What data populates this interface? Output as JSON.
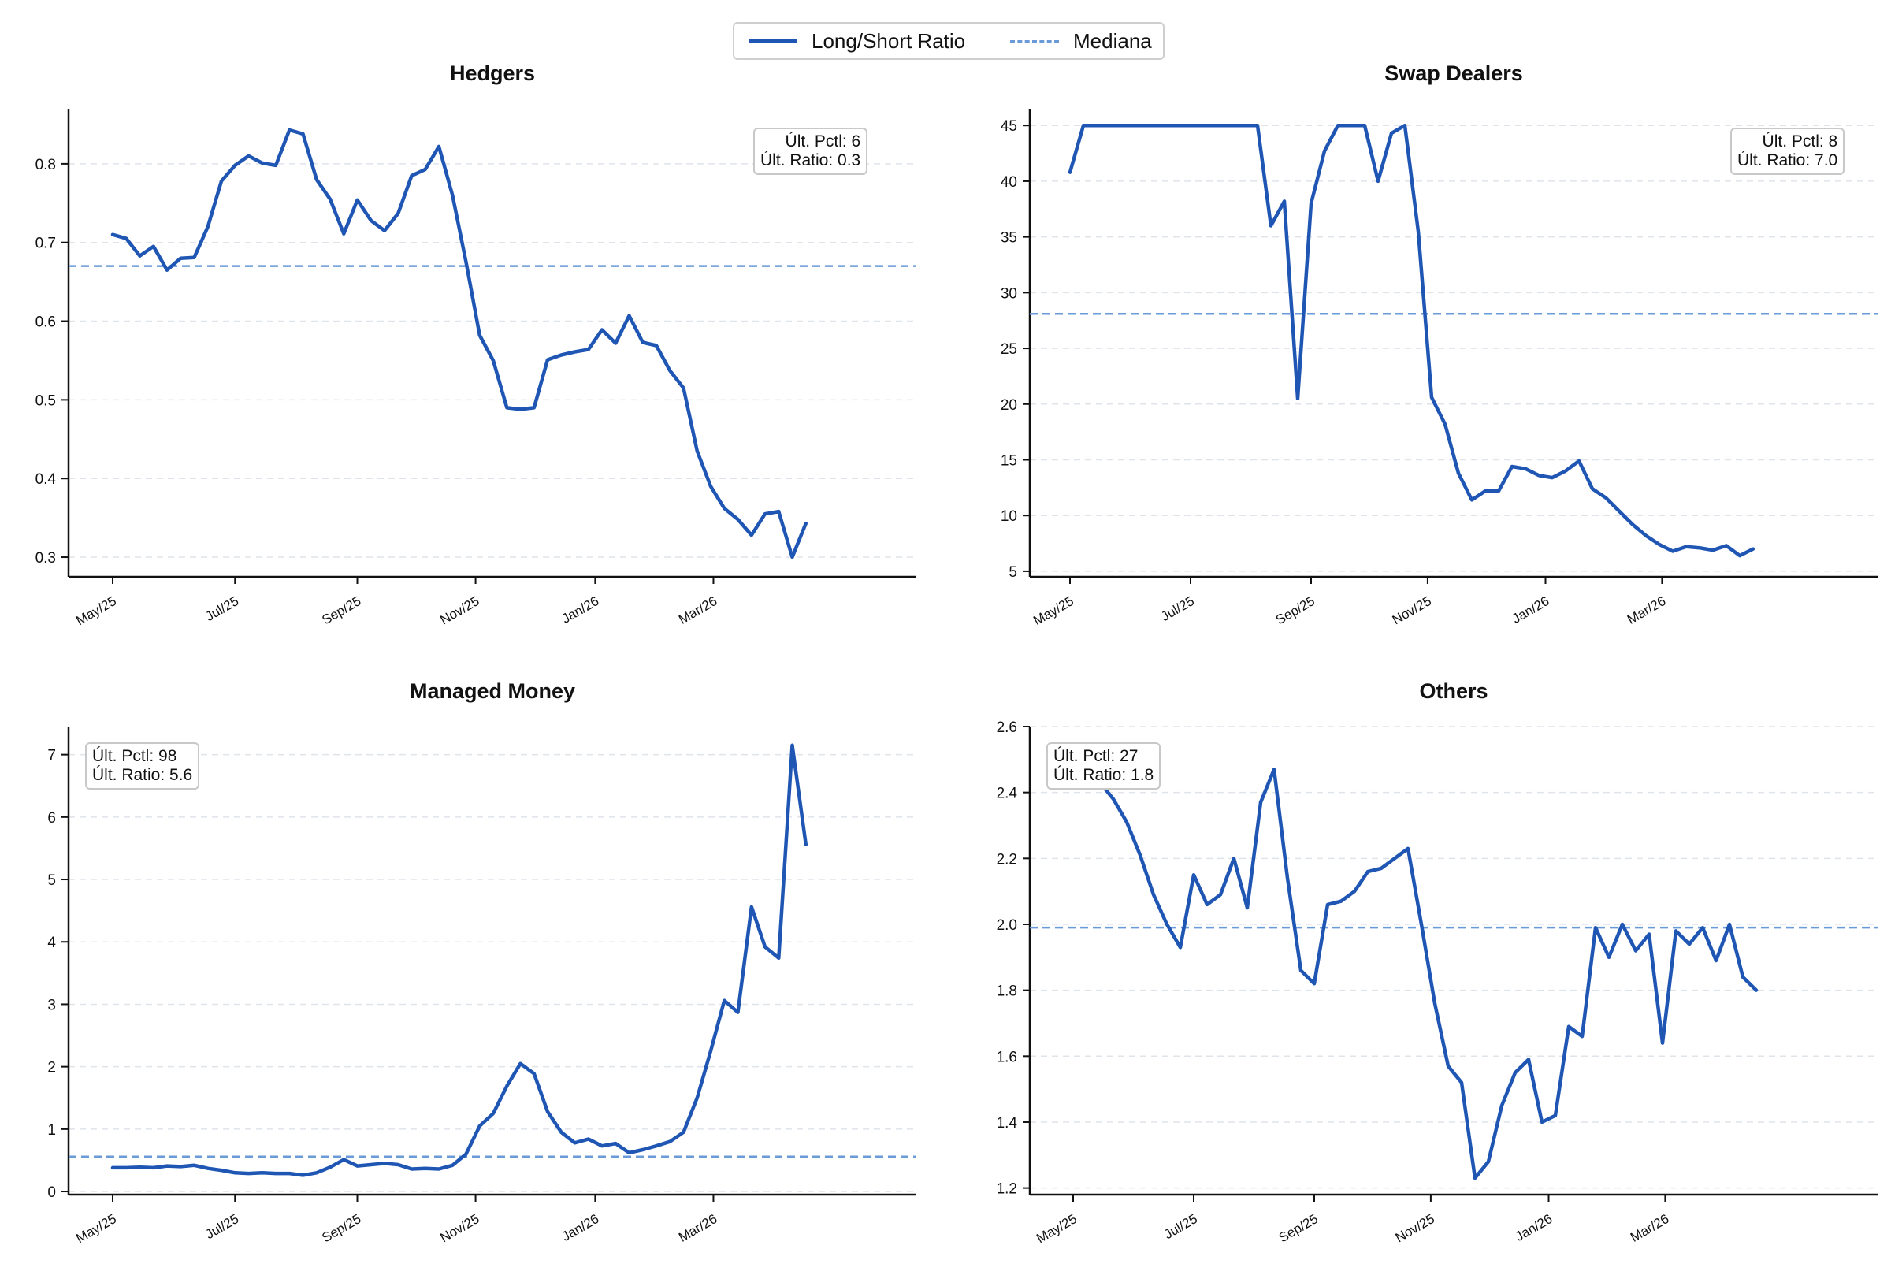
{
  "legend": {
    "line_label": "Long/Short Ratio",
    "median_label": "Mediana",
    "line_color": "#1f56b4",
    "median_color": "#6a9bd8"
  },
  "x_labels": [
    "May/25",
    "Jul/25",
    "Sep/25",
    "Nov/25",
    "Jan/26",
    "Mar/26"
  ],
  "chart_data": [
    {
      "type": "line",
      "title": "Hedgers",
      "ylim": [
        0.275,
        0.87
      ],
      "yticks": [
        0.3,
        0.4,
        0.5,
        0.6,
        0.7,
        0.8
      ],
      "tick_decimals": 1,
      "median": 0.67,
      "grid": "horizontal dashed",
      "annotation": {
        "position": "top-right",
        "line1": "Últ. Pctl: 6",
        "line2": "Últ. Ratio: 0.3"
      },
      "series": [
        {
          "name": "Long/Short Ratio",
          "values": [
            0.71,
            0.705,
            0.683,
            0.695,
            0.665,
            0.68,
            0.681,
            0.72,
            0.778,
            0.798,
            0.81,
            0.801,
            0.798,
            0.843,
            0.838,
            0.78,
            0.755,
            0.711,
            0.754,
            0.728,
            0.715,
            0.737,
            0.785,
            0.793,
            0.822,
            0.76,
            0.675,
            0.582,
            0.55,
            0.49,
            0.488,
            0.49,
            0.551,
            0.557,
            0.561,
            0.564,
            0.589,
            0.572,
            0.607,
            0.573,
            0.569,
            0.537,
            0.515,
            0.435,
            0.39,
            0.362,
            0.348,
            0.328,
            0.355,
            0.358,
            0.3,
            0.343
          ]
        }
      ]
    },
    {
      "type": "line",
      "title": "Swap Dealers",
      "ylim": [
        4.5,
        46.5
      ],
      "yticks": [
        5,
        10,
        15,
        20,
        25,
        30,
        35,
        40,
        45
      ],
      "tick_decimals": 0,
      "median": 28.1,
      "grid": "horizontal dashed",
      "annotation": {
        "position": "top-right",
        "line1": "Últ. Pctl: 8",
        "line2": "Últ. Ratio: 7.0"
      },
      "series": [
        {
          "name": "Long/Short Ratio",
          "values": [
            40.8,
            45,
            45,
            45,
            45,
            45,
            45,
            45,
            45,
            45,
            45,
            45,
            45,
            45,
            45,
            36,
            38.2,
            20.5,
            38,
            42.7,
            45,
            45,
            45,
            40,
            44.3,
            45,
            35.5,
            20.6,
            18.2,
            13.8,
            11.4,
            12.2,
            12.2,
            14.4,
            14.2,
            13.6,
            13.4,
            14,
            14.9,
            12.4,
            11.6,
            10.4,
            9.2,
            8.2,
            7.4,
            6.8,
            7.2,
            7.1,
            6.9,
            7.3,
            6.4,
            7.0
          ]
        }
      ]
    },
    {
      "type": "line",
      "title": "Managed Money",
      "ylim": [
        -0.05,
        7.45
      ],
      "yticks": [
        0,
        1,
        2,
        3,
        4,
        5,
        6,
        7
      ],
      "tick_decimals": 0,
      "median": 0.56,
      "grid": "horizontal dashed",
      "annotation": {
        "position": "top-left",
        "line1": "Últ. Pctl: 98",
        "line2": "Últ. Ratio: 5.6"
      },
      "series": [
        {
          "name": "Long/Short Ratio",
          "values": [
            0.38,
            0.38,
            0.39,
            0.38,
            0.41,
            0.4,
            0.42,
            0.37,
            0.34,
            0.3,
            0.29,
            0.3,
            0.29,
            0.29,
            0.26,
            0.3,
            0.39,
            0.51,
            0.41,
            0.43,
            0.45,
            0.43,
            0.36,
            0.37,
            0.36,
            0.42,
            0.6,
            1.05,
            1.25,
            1.69,
            2.05,
            1.89,
            1.28,
            0.95,
            0.78,
            0.84,
            0.73,
            0.77,
            0.62,
            0.67,
            0.73,
            0.8,
            0.95,
            1.5,
            2.25,
            3.06,
            2.87,
            4.56,
            3.92,
            3.74,
            7.15,
            5.56
          ]
        }
      ]
    },
    {
      "type": "line",
      "title": "Others",
      "ylim": [
        1.18,
        2.6
      ],
      "yticks": [
        1.2,
        1.4,
        1.6,
        1.8,
        2.0,
        2.2,
        2.4,
        2.6
      ],
      "tick_decimals": 1,
      "median": 1.99,
      "grid": "horizontal dashed",
      "annotation": {
        "position": "top-left",
        "line1": "Últ. Pctl: 27",
        "line2": "Últ. Ratio: 1.8"
      },
      "series": [
        {
          "name": "Long/Short Ratio",
          "values": [
            2.52,
            2.48,
            2.43,
            2.38,
            2.31,
            2.21,
            2.09,
            2.0,
            1.93,
            2.15,
            2.06,
            2.09,
            2.2,
            2.05,
            2.37,
            2.47,
            2.14,
            1.86,
            1.82,
            2.06,
            2.07,
            2.1,
            2.16,
            2.17,
            2.2,
            2.23,
            2.0,
            1.76,
            1.57,
            1.52,
            1.23,
            1.28,
            1.45,
            1.55,
            1.59,
            1.4,
            1.42,
            1.69,
            1.66,
            1.99,
            1.9,
            2.0,
            1.92,
            1.97,
            1.64,
            1.98,
            1.94,
            1.99,
            1.89,
            2.0,
            1.84,
            1.8
          ]
        }
      ]
    }
  ]
}
